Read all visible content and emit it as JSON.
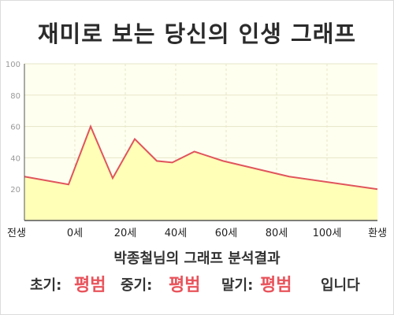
{
  "title": "재미로 보는 당신의 인생 그래프",
  "chart_data": {
    "type": "area",
    "categories": [
      "전생",
      "0세",
      "20세",
      "40세",
      "60세",
      "80세",
      "100세",
      "환생"
    ],
    "x": [
      -20,
      0,
      10,
      20,
      30,
      40,
      47,
      57,
      70,
      100,
      140
    ],
    "y": [
      28,
      23,
      60,
      27,
      52,
      38,
      37,
      44,
      38,
      28,
      20
    ],
    "ylim": [
      0,
      100
    ],
    "yticks": [
      20,
      40,
      60,
      80,
      100
    ],
    "grid": true,
    "colors": {
      "line": "#e0555c",
      "fill": "#ffffb8",
      "plot_bg": "#fffff0",
      "grid": "#e6e6c8",
      "axis": "#555555",
      "tick_label": "#999999",
      "category_label": "#222222"
    }
  },
  "analysis": {
    "title": "박종철님의 그래프 분석결과",
    "early_label": "초기:",
    "early_value": "평범",
    "mid_label": "중기:",
    "mid_value": "평범",
    "late_label": "말기:",
    "late_value": "평범",
    "suffix": "입니다"
  }
}
